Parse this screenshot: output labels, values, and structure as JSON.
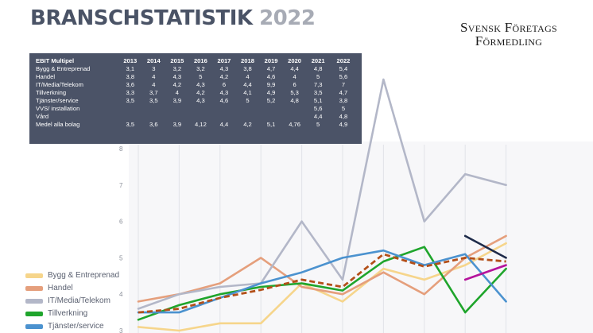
{
  "header": {
    "title_main": "BRANSCHSTATISTIK",
    "title_year": "2022",
    "logo_line1": "Svensk Företags",
    "logo_line2": "Förmedling"
  },
  "table": {
    "header_label": "EBIT Multipel",
    "years": [
      "2013",
      "2014",
      "2015",
      "2016",
      "2017",
      "2018",
      "2019",
      "2020",
      "2021",
      "2022"
    ],
    "rows": [
      {
        "label": "Bygg & Entreprenad",
        "values": [
          "3,1",
          "3",
          "3,2",
          "3,2",
          "4,3",
          "3,8",
          "4,7",
          "4,4",
          "4,8",
          "5,4"
        ]
      },
      {
        "label": "Handel",
        "values": [
          "3,8",
          "4",
          "4,3",
          "5",
          "4,2",
          "4",
          "4,6",
          "4",
          "5",
          "5,6"
        ]
      },
      {
        "label": "IT/Media/Telekom",
        "values": [
          "3,6",
          "4",
          "4,2",
          "4,3",
          "6",
          "4,4",
          "9,9",
          "6",
          "7,3",
          "7"
        ]
      },
      {
        "label": "Tillverkning",
        "values": [
          "3,3",
          "3,7",
          "4",
          "4,2",
          "4,3",
          "4,1",
          "4,9",
          "5,3",
          "3,5",
          "4,7"
        ]
      },
      {
        "label": "Tjänster/service",
        "values": [
          "3,5",
          "3,5",
          "3,9",
          "4,3",
          "4,6",
          "5",
          "5,2",
          "4,8",
          "5,1",
          "3,8"
        ]
      },
      {
        "label": "VVS/ installation",
        "values": [
          "",
          "",
          "",
          "",
          "",
          "",
          "",
          "",
          "5,6",
          "5"
        ]
      },
      {
        "label": "Vård",
        "values": [
          "",
          "",
          "",
          "",
          "",
          "",
          "",
          "",
          "4,4",
          "4,8"
        ]
      },
      {
        "label": "Medel alla bolag",
        "values": [
          "3,5",
          "3,6",
          "3,9",
          "4,12",
          "4,4",
          "4,2",
          "5,1",
          "4,76",
          "5",
          "4,9"
        ]
      }
    ]
  },
  "legend": [
    {
      "label": "Bygg & Entreprenad",
      "color": "#f6d58b"
    },
    {
      "label": "Handel",
      "color": "#e59f7c"
    },
    {
      "label": "IT/Media/Telekom",
      "color": "#b3b7c8"
    },
    {
      "label": "Tillverkning",
      "color": "#1fa52c"
    },
    {
      "label": "Tjänster/service",
      "color": "#4b92cf"
    }
  ],
  "chart_data": {
    "type": "line",
    "ylim": [
      3,
      8
    ],
    "yticks": [
      "3",
      "4",
      "5",
      "6",
      "7",
      "8"
    ],
    "grid": "vertical lines",
    "x": [
      "2013",
      "2014",
      "2015",
      "2016",
      "2017",
      "2018",
      "2019",
      "2020",
      "2021",
      "2022"
    ],
    "series": [
      {
        "name": "Bygg & Entreprenad",
        "color": "#f6d58b",
        "values": [
          3.1,
          3.0,
          3.2,
          3.2,
          4.3,
          3.8,
          4.7,
          4.4,
          4.8,
          5.4
        ]
      },
      {
        "name": "Handel",
        "color": "#e59f7c",
        "values": [
          3.8,
          4.0,
          4.3,
          5.0,
          4.2,
          4.0,
          4.6,
          4.0,
          5.0,
          5.6
        ]
      },
      {
        "name": "IT/Media/Telekom",
        "color": "#b3b7c8",
        "values": [
          3.6,
          4.0,
          4.2,
          4.3,
          6.0,
          4.4,
          9.9,
          6.0,
          7.3,
          7.0
        ]
      },
      {
        "name": "Tillverkning",
        "color": "#1fa52c",
        "values": [
          3.3,
          3.7,
          4.0,
          4.2,
          4.3,
          4.1,
          4.9,
          5.3,
          3.5,
          4.7
        ]
      },
      {
        "name": "Tjänster/service",
        "color": "#4b92cf",
        "values": [
          3.5,
          3.5,
          3.9,
          4.3,
          4.6,
          5.0,
          5.2,
          4.8,
          5.1,
          3.8
        ]
      },
      {
        "name": "VVS/ installation",
        "color": "#1e2b4a",
        "values": [
          null,
          null,
          null,
          null,
          null,
          null,
          null,
          null,
          5.6,
          5.0
        ]
      },
      {
        "name": "Vård",
        "color": "#b5149c",
        "values": [
          null,
          null,
          null,
          null,
          null,
          null,
          null,
          null,
          4.4,
          4.8
        ]
      },
      {
        "name": "Medel alla bolag",
        "color": "#b34f19",
        "dashed": true,
        "values": [
          3.5,
          3.6,
          3.9,
          4.12,
          4.4,
          4.2,
          5.1,
          4.76,
          5.0,
          4.9
        ]
      }
    ]
  }
}
